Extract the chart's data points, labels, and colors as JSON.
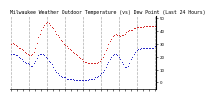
{
  "title": "Milwaukee Weather Outdoor Temperature (vs) Dew Point (Last 24 Hours)",
  "title_fontsize": 3.5,
  "background_color": "#ffffff",
  "plot_bg_color": "#ffffff",
  "grid_color": "#999999",
  "ylim": [
    -5,
    52
  ],
  "ytick_values": [
    0,
    10,
    20,
    30,
    40,
    50
  ],
  "ytick_labels": [
    "0",
    "10",
    "20",
    "30",
    "40",
    "50"
  ],
  "num_points": 97,
  "temp_color": "#cc0000",
  "dew_color": "#0000bb",
  "black_color": "#000000",
  "marker_size": 1.5,
  "temp_data": [
    30,
    31,
    30,
    29,
    28,
    27,
    27,
    26,
    25,
    24,
    23,
    22,
    21,
    21,
    22,
    24,
    27,
    31,
    35,
    38,
    41,
    43,
    45,
    46,
    47,
    46,
    45,
    43,
    42,
    40,
    38,
    37,
    35,
    33,
    32,
    30,
    29,
    28,
    27,
    26,
    25,
    24,
    23,
    22,
    21,
    20,
    19,
    18,
    17,
    16,
    16,
    15,
    15,
    15,
    15,
    15,
    15,
    15,
    16,
    17,
    18,
    20,
    22,
    25,
    27,
    30,
    32,
    34,
    36,
    37,
    38,
    37,
    37,
    36,
    37,
    37,
    38,
    39,
    40,
    41,
    41,
    41,
    42,
    42,
    43,
    43,
    43,
    43,
    43,
    44,
    44,
    44,
    44,
    44,
    44,
    44,
    44
  ],
  "dew_data": [
    22,
    22,
    22,
    21,
    21,
    20,
    19,
    18,
    17,
    16,
    15,
    15,
    14,
    13,
    13,
    15,
    17,
    19,
    21,
    22,
    22,
    22,
    21,
    20,
    19,
    17,
    16,
    14,
    12,
    10,
    8,
    7,
    6,
    5,
    4,
    4,
    4,
    3,
    3,
    3,
    3,
    3,
    2,
    2,
    2,
    2,
    2,
    2,
    2,
    2,
    2,
    2,
    3,
    3,
    3,
    3,
    4,
    4,
    5,
    6,
    7,
    8,
    10,
    12,
    14,
    16,
    18,
    20,
    21,
    22,
    22,
    21,
    20,
    18,
    16,
    14,
    12,
    12,
    13,
    15,
    18,
    20,
    22,
    24,
    25,
    26,
    26,
    27,
    27,
    27,
    27,
    27,
    27,
    27,
    27,
    27,
    28
  ],
  "num_vlines": 9,
  "num_xticks": 25
}
